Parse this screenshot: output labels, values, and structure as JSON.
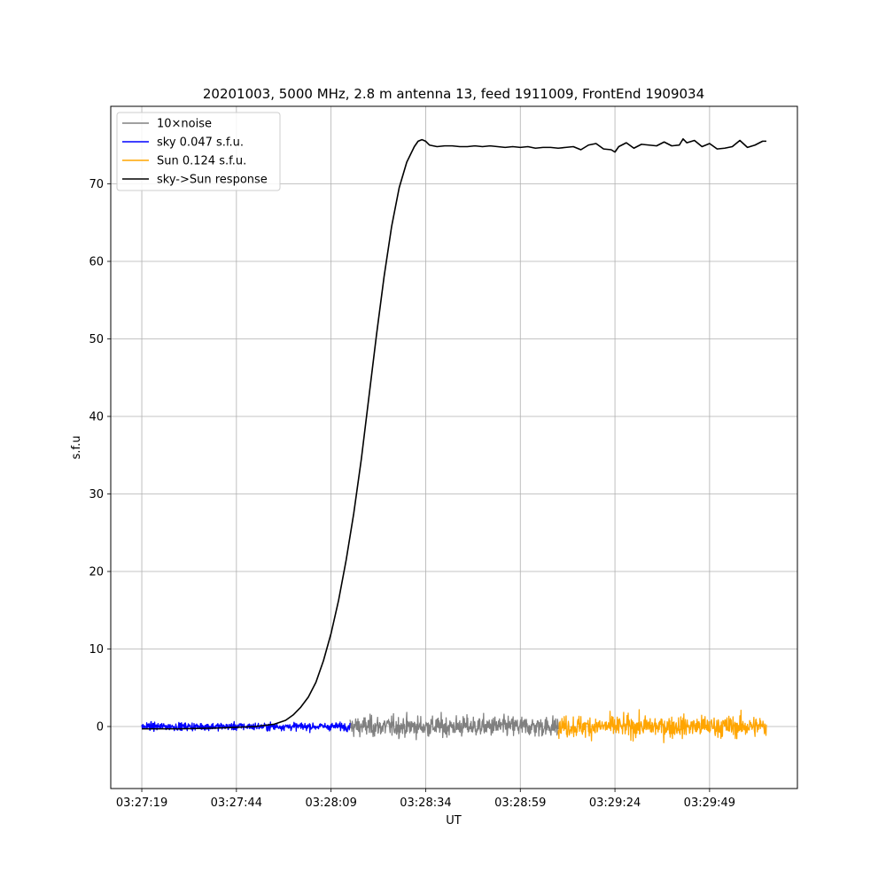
{
  "chart_data": {
    "type": "line",
    "title": "20201003, 5000 MHz, 2.8 m antenna 13, feed 1911009, FrontEnd 1909034",
    "xlabel": "UT",
    "ylabel": "s.f.u",
    "x_ticks": [
      {
        "t": 0,
        "label": "03:27:19"
      },
      {
        "t": 25,
        "label": "03:27:44"
      },
      {
        "t": 50,
        "label": "03:28:09"
      },
      {
        "t": 75,
        "label": "03:28:34"
      },
      {
        "t": 100,
        "label": "03:28:59"
      },
      {
        "t": 125,
        "label": "03:29:24"
      },
      {
        "t": 150,
        "label": "03:29:49"
      }
    ],
    "y_ticks": [
      0,
      10,
      20,
      30,
      40,
      50,
      60,
      70
    ],
    "xlim": [
      -8.2,
      173.2
    ],
    "ylim": [
      -8,
      80
    ],
    "grid": true,
    "legend_position": "upper left",
    "series": [
      {
        "name": "10×noise",
        "color": "#808080",
        "kind": "noise",
        "t_range": [
          55,
          110
        ],
        "amplitude": 1.2
      },
      {
        "name": "sky 0.047 s.f.u.",
        "color": "#0000ff",
        "kind": "noise",
        "t_range": [
          0,
          55
        ],
        "amplitude": 0.45
      },
      {
        "name": "Sun 0.124 s.f.u.",
        "color": "#ffa500",
        "kind": "noise",
        "t_range": [
          110,
          165
        ],
        "amplitude": 1.25
      },
      {
        "name": "sky->Sun response",
        "color": "#000000",
        "kind": "line",
        "points": [
          [
            0,
            -0.3
          ],
          [
            10,
            -0.3
          ],
          [
            20,
            -0.2
          ],
          [
            30,
            0.0
          ],
          [
            35,
            0.3
          ],
          [
            38,
            0.8
          ],
          [
            40,
            1.5
          ],
          [
            42,
            2.5
          ],
          [
            44,
            3.8
          ],
          [
            46,
            5.7
          ],
          [
            48,
            8.5
          ],
          [
            50,
            12.0
          ],
          [
            52,
            16.3
          ],
          [
            54,
            21.5
          ],
          [
            56,
            27.5
          ],
          [
            58,
            34.5
          ],
          [
            60,
            42.5
          ],
          [
            62,
            50.5
          ],
          [
            64,
            58.0
          ],
          [
            66,
            64.5
          ],
          [
            68,
            69.5
          ],
          [
            70,
            72.8
          ],
          [
            72,
            74.8
          ],
          [
            73,
            75.5
          ],
          [
            74,
            75.7
          ],
          [
            75,
            75.5
          ],
          [
            76,
            75.0
          ],
          [
            78,
            74.8
          ],
          [
            80,
            74.9
          ],
          [
            82,
            74.9
          ],
          [
            84,
            74.8
          ],
          [
            86,
            74.8
          ],
          [
            88,
            74.9
          ],
          [
            90,
            74.8
          ],
          [
            92,
            74.9
          ],
          [
            94,
            74.8
          ],
          [
            96,
            74.7
          ],
          [
            98,
            74.8
          ],
          [
            100,
            74.7
          ],
          [
            102,
            74.8
          ],
          [
            104,
            74.6
          ],
          [
            106,
            74.7
          ],
          [
            108,
            74.7
          ],
          [
            110,
            74.6
          ],
          [
            112,
            74.7
          ],
          [
            114,
            74.8
          ],
          [
            116,
            74.4
          ],
          [
            118,
            75.0
          ],
          [
            120,
            75.2
          ],
          [
            122,
            74.5
          ],
          [
            124,
            74.4
          ],
          [
            125,
            74.1
          ],
          [
            126,
            74.8
          ],
          [
            128,
            75.3
          ],
          [
            130,
            74.6
          ],
          [
            132,
            75.1
          ],
          [
            134,
            75.0
          ],
          [
            136,
            74.9
          ],
          [
            138,
            75.4
          ],
          [
            140,
            74.9
          ],
          [
            142,
            75.0
          ],
          [
            143,
            75.8
          ],
          [
            144,
            75.3
          ],
          [
            146,
            75.6
          ],
          [
            148,
            74.8
          ],
          [
            150,
            75.2
          ],
          [
            152,
            74.5
          ],
          [
            154,
            74.6
          ],
          [
            156,
            74.8
          ],
          [
            158,
            75.6
          ],
          [
            160,
            74.7
          ],
          [
            162,
            75.0
          ],
          [
            164,
            75.5
          ],
          [
            165,
            75.5
          ]
        ]
      }
    ]
  }
}
